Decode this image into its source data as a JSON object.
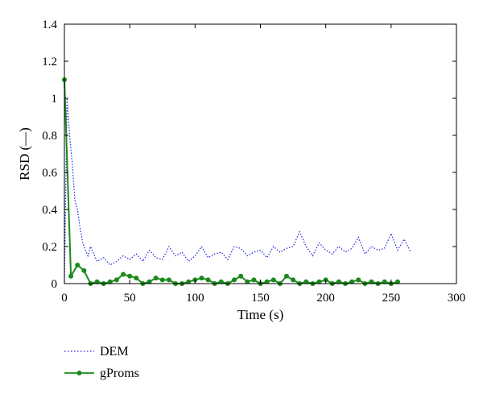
{
  "chart_data": {
    "type": "line",
    "title": "",
    "xlabel": "Time (s)",
    "ylabel": "RSD (—)",
    "xlim": [
      0,
      300
    ],
    "ylim": [
      0,
      1.4
    ],
    "xticks": [
      0,
      50,
      100,
      150,
      200,
      250,
      300
    ],
    "yticks": [
      0,
      0.2,
      0.4,
      0.6,
      0.8,
      1,
      1.2,
      1.4
    ],
    "xtick_labels": [
      "0",
      "50",
      "100",
      "150",
      "200",
      "250",
      "300"
    ],
    "ytick_labels": [
      "0",
      "0.2",
      "0.4",
      "0.6",
      "0.8",
      "1",
      "1.2",
      "1.4"
    ],
    "grid": false,
    "legend_position": "below-left",
    "series": [
      {
        "name": "DEM",
        "style": "dotted",
        "color": "#2222dd",
        "x": [
          0,
          2,
          4,
          6,
          8,
          10,
          12,
          14,
          16,
          18,
          20,
          25,
          30,
          35,
          40,
          45,
          50,
          55,
          60,
          65,
          70,
          75,
          80,
          85,
          90,
          95,
          100,
          105,
          110,
          115,
          120,
          125,
          130,
          135,
          140,
          145,
          150,
          155,
          160,
          165,
          170,
          175,
          180,
          185,
          190,
          195,
          200,
          205,
          210,
          215,
          220,
          225,
          230,
          235,
          240,
          245,
          250,
          255,
          260,
          265
        ],
        "y": [
          0,
          1.0,
          0.8,
          0.65,
          0.45,
          0.4,
          0.3,
          0.22,
          0.18,
          0.15,
          0.2,
          0.12,
          0.14,
          0.1,
          0.12,
          0.15,
          0.13,
          0.16,
          0.12,
          0.18,
          0.14,
          0.13,
          0.2,
          0.15,
          0.17,
          0.12,
          0.15,
          0.2,
          0.14,
          0.16,
          0.17,
          0.13,
          0.2,
          0.19,
          0.15,
          0.17,
          0.18,
          0.14,
          0.2,
          0.17,
          0.19,
          0.2,
          0.28,
          0.2,
          0.15,
          0.22,
          0.18,
          0.16,
          0.2,
          0.17,
          0.19,
          0.25,
          0.16,
          0.2,
          0.18,
          0.19,
          0.27,
          0.18,
          0.24,
          0.17
        ]
      },
      {
        "name": "gProms",
        "style": "solid-marker",
        "color": "#1a8a1a",
        "x": [
          0,
          5,
          10,
          15,
          20,
          25,
          30,
          35,
          40,
          45,
          50,
          55,
          60,
          65,
          70,
          75,
          80,
          85,
          90,
          95,
          100,
          105,
          110,
          115,
          120,
          125,
          130,
          135,
          140,
          145,
          150,
          155,
          160,
          165,
          170,
          175,
          180,
          185,
          190,
          195,
          200,
          205,
          210,
          215,
          220,
          225,
          230,
          235,
          240,
          245,
          250,
          255
        ],
        "y": [
          1.1,
          0.04,
          0.1,
          0.07,
          0.0,
          0.01,
          0.0,
          0.01,
          0.02,
          0.05,
          0.04,
          0.03,
          0.0,
          0.01,
          0.03,
          0.02,
          0.02,
          0.0,
          0.0,
          0.01,
          0.02,
          0.03,
          0.02,
          0.0,
          0.01,
          0.0,
          0.02,
          0.04,
          0.01,
          0.02,
          0.0,
          0.01,
          0.02,
          0.0,
          0.04,
          0.02,
          0.0,
          0.01,
          0.0,
          0.01,
          0.02,
          0.0,
          0.01,
          0.0,
          0.01,
          0.02,
          0.0,
          0.01,
          0.0,
          0.01,
          0.0,
          0.01
        ]
      }
    ]
  }
}
